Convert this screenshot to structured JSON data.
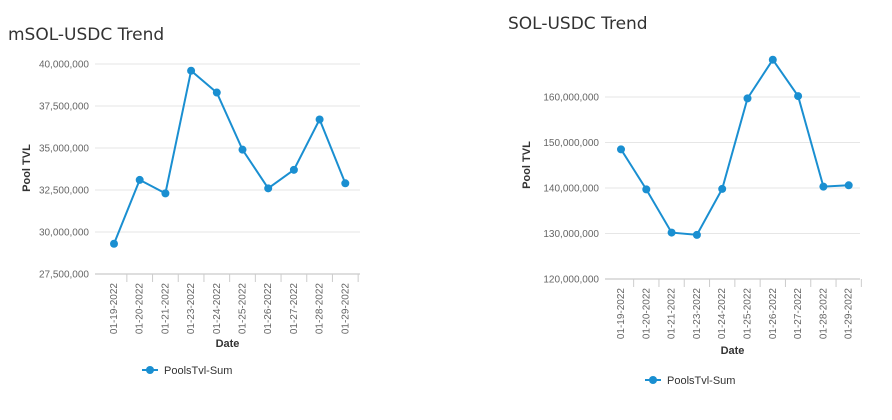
{
  "chart_data": [
    {
      "type": "line",
      "title": "mSOL-USDC Trend",
      "xlabel": "Date",
      "ylabel": "Pool TVL",
      "categories": [
        "01-19-2022",
        "01-20-2022",
        "01-21-2022",
        "01-23-2022",
        "01-24-2022",
        "01-25-2022",
        "01-26-2022",
        "01-27-2022",
        "01-28-2022",
        "01-29-2022"
      ],
      "series": [
        {
          "name": "PoolsTvl-Sum",
          "values": [
            29300000,
            33100000,
            32300000,
            39600000,
            38300000,
            34900000,
            32600000,
            33700000,
            36700000,
            32900000
          ]
        }
      ],
      "ylim": [
        27500000,
        40000000
      ],
      "yticks": [
        27500000,
        30000000,
        32500000,
        35000000,
        37500000,
        40000000
      ],
      "ytick_labels": [
        "27,500,000",
        "30,000,000",
        "32,500,000",
        "35,000,000",
        "37,500,000",
        "40,000,000"
      ],
      "grid": true,
      "legend": "bottom",
      "color": "#1a8fd1"
    },
    {
      "type": "line",
      "title": "SOL-USDC Trend",
      "xlabel": "Date",
      "ylabel": "Pool TVL",
      "categories": [
        "01-19-2022",
        "01-20-2022",
        "01-21-2022",
        "01-23-2022",
        "01-24-2022",
        "01-25-2022",
        "01-26-2022",
        "01-27-2022",
        "01-28-2022",
        "01-29-2022"
      ],
      "series": [
        {
          "name": "PoolsTvl-Sum",
          "values": [
            148500000,
            139700000,
            130200000,
            129700000,
            139800000,
            159700000,
            168200000,
            160200000,
            140300000,
            140600000
          ]
        }
      ],
      "ylim": [
        120000000,
        160000000
      ],
      "yticks": [
        120000000,
        130000000,
        140000000,
        150000000,
        160000000
      ],
      "ytick_labels": [
        "120,000,000",
        "130,000,000",
        "140,000,000",
        "150,000,000",
        "160,000,000"
      ],
      "grid": true,
      "legend": "bottom",
      "color": "#1a8fd1"
    }
  ]
}
